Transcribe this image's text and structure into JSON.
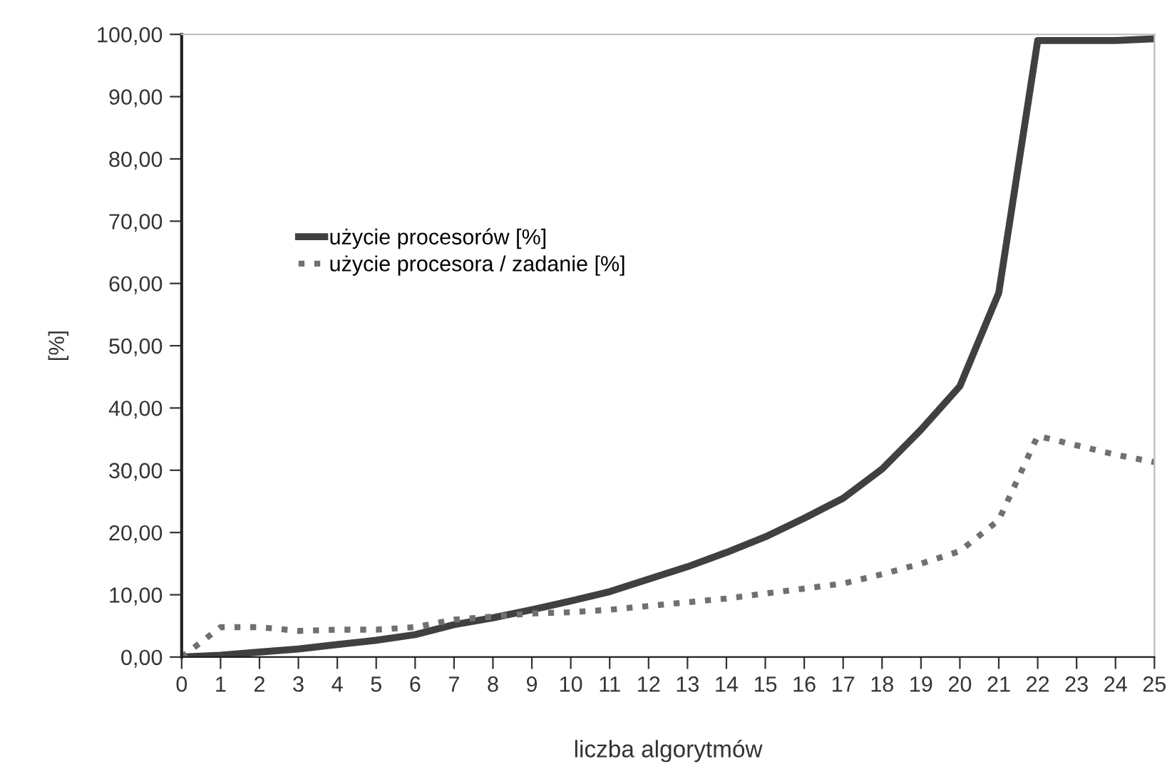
{
  "chart_data": {
    "type": "line",
    "xlabel": "liczba algorytmów",
    "ylabel": "[%]",
    "x": [
      0,
      1,
      2,
      3,
      4,
      5,
      6,
      7,
      8,
      9,
      10,
      11,
      12,
      13,
      14,
      15,
      16,
      17,
      18,
      19,
      20,
      21,
      22,
      23,
      24,
      25
    ],
    "series": [
      {
        "name": "użycie procesorów [%]",
        "color": "#404040",
        "line_style": "solid",
        "values": [
          0,
          0.3,
          0.8,
          1.3,
          2,
          2.7,
          3.6,
          5.2,
          6.3,
          7.6,
          9,
          10.5,
          12.5,
          14.5,
          16.8,
          19.3,
          22.3,
          25.5,
          30.2,
          36.5,
          43.5,
          58.5,
          99,
          99,
          99,
          99.3
        ]
      },
      {
        "name": "użycie procesora / zadanie [%]",
        "color": "#707070",
        "line_style": "dotted",
        "values": [
          0,
          4.8,
          4.8,
          4.2,
          4.4,
          4.4,
          4.8,
          6,
          6.5,
          7,
          7.2,
          7.6,
          8.2,
          8.8,
          9.4,
          10.2,
          11,
          11.8,
          13.3,
          15,
          17,
          22,
          35.5,
          34,
          32.5,
          31.3
        ]
      }
    ],
    "xlim": [
      0,
      25
    ],
    "xticks": [
      0,
      1,
      2,
      3,
      4,
      5,
      6,
      7,
      8,
      9,
      10,
      11,
      12,
      13,
      14,
      15,
      16,
      17,
      18,
      19,
      20,
      21,
      22,
      23,
      24,
      25
    ],
    "ylim": [
      0,
      100
    ],
    "yticks": [
      {
        "value": 0,
        "label": "0,00"
      },
      {
        "value": 10,
        "label": "10,00"
      },
      {
        "value": 20,
        "label": "20,00"
      },
      {
        "value": 30,
        "label": "30,00"
      },
      {
        "value": 40,
        "label": "40,00"
      },
      {
        "value": 50,
        "label": "50,00"
      },
      {
        "value": 60,
        "label": "60,00"
      },
      {
        "value": 70,
        "label": "70,00"
      },
      {
        "value": 80,
        "label": "80,00"
      },
      {
        "value": 90,
        "label": "90,00"
      },
      {
        "value": 100,
        "label": "100,00"
      }
    ],
    "grid": false,
    "legend": "top left",
    "marker": "none"
  }
}
